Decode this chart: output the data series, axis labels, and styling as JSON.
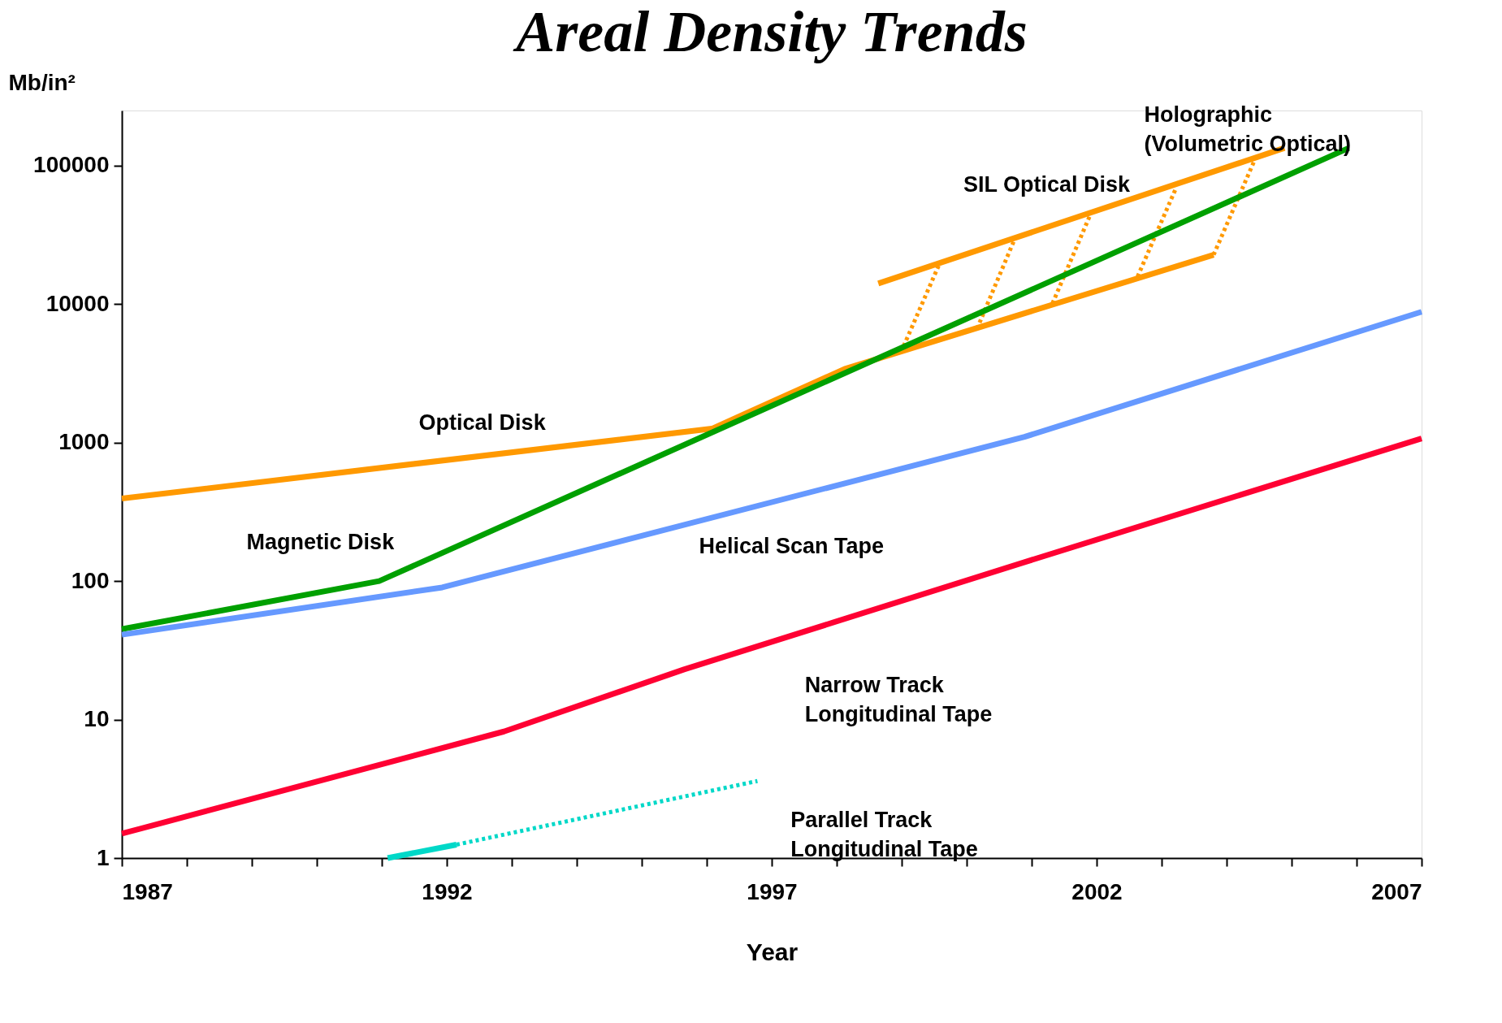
{
  "chart_data": {
    "type": "line",
    "title": "Areal Density Trends",
    "xlabel": "Year",
    "ylabel": "Mb/in²",
    "xlim": [
      1987,
      2007
    ],
    "xticks": [
      1987,
      {
        "value": 1988,
        "label": null
      },
      {
        "value": 1989,
        "label": null
      },
      {
        "value": 1990,
        "label": null
      },
      {
        "value": 1991,
        "label": null
      },
      1992,
      {
        "value": 1993,
        "label": null
      },
      {
        "value": 1994,
        "label": null
      },
      {
        "value": 1995,
        "label": null
      },
      {
        "value": 1996,
        "label": null
      },
      1997,
      {
        "value": 1998,
        "label": null
      },
      {
        "value": 1999,
        "label": null
      },
      {
        "value": 2000,
        "label": null
      },
      {
        "value": 2001,
        "label": null
      },
      2002,
      {
        "value": 2003,
        "label": null
      },
      {
        "value": 2004,
        "label": null
      },
      {
        "value": 2005,
        "label": null
      },
      {
        "value": 2006,
        "label": null
      },
      2007
    ],
    "ylim": [
      1,
      250000
    ],
    "yticks": [
      1,
      10,
      100,
      1000,
      10000,
      100000
    ],
    "log": "y",
    "grid": false,
    "marker": "none",
    "series": [
      {
        "color": "#ff9900",
        "line_style": "solid",
        "x": [
          1987,
          1996.08,
          1998.12,
          2003.8
        ],
        "values": [
          395,
          1260,
          3400,
          22700
        ]
      },
      {
        "color": "#ff9900",
        "line_style": "solid",
        "x": [
          1998.64,
          2004.89
        ],
        "values": [
          14100,
          134000
        ]
      },
      {
        "color": "#ff9900",
        "line_style": "dotted",
        "x": [
          1998.99,
          1999.58
        ],
        "values": [
          4500,
          19500
        ]
      },
      {
        "color": "#ff9900",
        "line_style": "dotted",
        "x": [
          2000.16,
          2000.74
        ],
        "values": [
          6650,
          29600
        ]
      },
      {
        "color": "#ff9900",
        "line_style": "dotted",
        "x": [
          2001.32,
          2001.91
        ],
        "values": [
          10100,
          45100
        ]
      },
      {
        "color": "#ff9900",
        "line_style": "dotted",
        "x": [
          2002.63,
          2003.22
        ],
        "values": [
          15800,
          68600
        ]
      },
      {
        "color": "#ff9900",
        "line_style": "dotted",
        "x": [
          2003.8,
          2004.45
        ],
        "values": [
          22700,
          115000
        ]
      },
      {
        "color": "#00a000",
        "line_style": "solid",
        "x": [
          1987,
          1990.96,
          2005.88
        ],
        "values": [
          45,
          100,
          134000
        ]
      },
      {
        "color": "#6699ff",
        "line_style": "solid",
        "x": [
          1987,
          1991.93,
          2000.89,
          2007
        ],
        "values": [
          41,
          90,
          1100,
          8800
        ]
      },
      {
        "color": "#ff0033",
        "line_style": "solid",
        "x": [
          1987,
          1992.88,
          1995.65,
          2000.89,
          2007
        ],
        "values": [
          1.5,
          8.2,
          23,
          137,
          1070
        ]
      },
      {
        "color": "#00d8c8",
        "line_style": "solid",
        "x": [
          1991.09,
          1992.15
        ],
        "values": [
          1,
          1.25
        ]
      },
      {
        "color": "#00d8c8",
        "line_style": "dotted",
        "x": [
          1992.15,
          1996.78
        ],
        "values": [
          1.25,
          3.6
        ]
      }
    ],
    "annotations": [
      "Optical Disk",
      "Magnetic Disk",
      "Helical Scan Tape",
      "Narrow Track\nLongitudinal Tape",
      "Parallel Track\nLongitudinal Tape",
      "SIL Optical Disk",
      "Holographic\n(Volumetric Optical)"
    ]
  }
}
